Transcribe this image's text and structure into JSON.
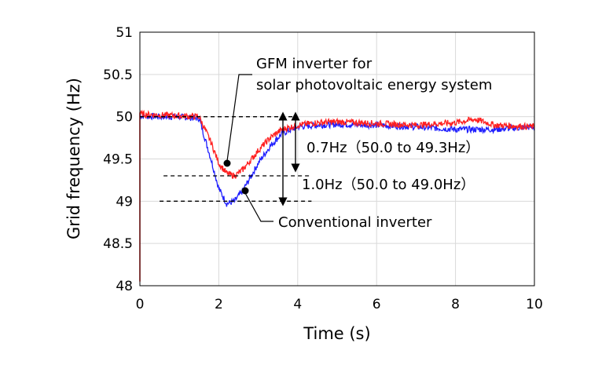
{
  "chart_data": {
    "type": "line",
    "xlabel": "Time (s)",
    "ylabel": "Grid frequency (Hz)",
    "xlim": [
      0,
      10
    ],
    "ylim": [
      48,
      51
    ],
    "xticks": [
      "0",
      "2",
      "4",
      "6",
      "8",
      "10"
    ],
    "yticks": [
      "48",
      "48.5",
      "49",
      "49.5",
      "50",
      "50.5",
      "51"
    ],
    "grid": true,
    "series": [
      {
        "name": "GFM inverter for solar photovoltaic energy system",
        "color": "#ff2020",
        "x": [
          0,
          0.5,
          1.0,
          1.5,
          1.8,
          2.0,
          2.2,
          2.4,
          2.6,
          2.8,
          3.0,
          3.3,
          3.6,
          4.0,
          4.5,
          5.0,
          6.0,
          7.0,
          8.0,
          8.5,
          9.0,
          10.0
        ],
        "y": [
          50.03,
          50.02,
          50.01,
          50.0,
          49.7,
          49.45,
          49.33,
          49.3,
          49.37,
          49.48,
          49.6,
          49.75,
          49.85,
          49.9,
          49.93,
          49.94,
          49.92,
          49.9,
          49.93,
          49.97,
          49.9,
          49.88
        ]
      },
      {
        "name": "Conventional inverter",
        "color": "#1f1fff",
        "x": [
          0,
          0.5,
          1.0,
          1.5,
          1.8,
          2.0,
          2.2,
          2.4,
          2.6,
          2.8,
          3.0,
          3.3,
          3.6,
          4.0,
          4.5,
          5.0,
          6.0,
          7.0,
          8.0,
          8.5,
          9.0,
          10.0
        ],
        "y": [
          50.01,
          50.0,
          50.0,
          49.98,
          49.5,
          49.15,
          48.97,
          49.0,
          49.12,
          49.28,
          49.45,
          49.65,
          49.8,
          49.88,
          49.9,
          49.91,
          49.9,
          49.88,
          49.85,
          49.85,
          49.85,
          49.88
        ]
      }
    ],
    "reference_lines": [
      50.0,
      49.3,
      49.0
    ],
    "annotations": {
      "gfm_label_line1": "GFM inverter for",
      "gfm_label_line2": "solar photovoltaic energy system",
      "conventional_label": "Conventional inverter",
      "drop_gfm": "0.7Hz（50.0 to 49.3Hz）",
      "drop_conventional": "1.0Hz（50.0 to 49.0Hz）"
    }
  }
}
